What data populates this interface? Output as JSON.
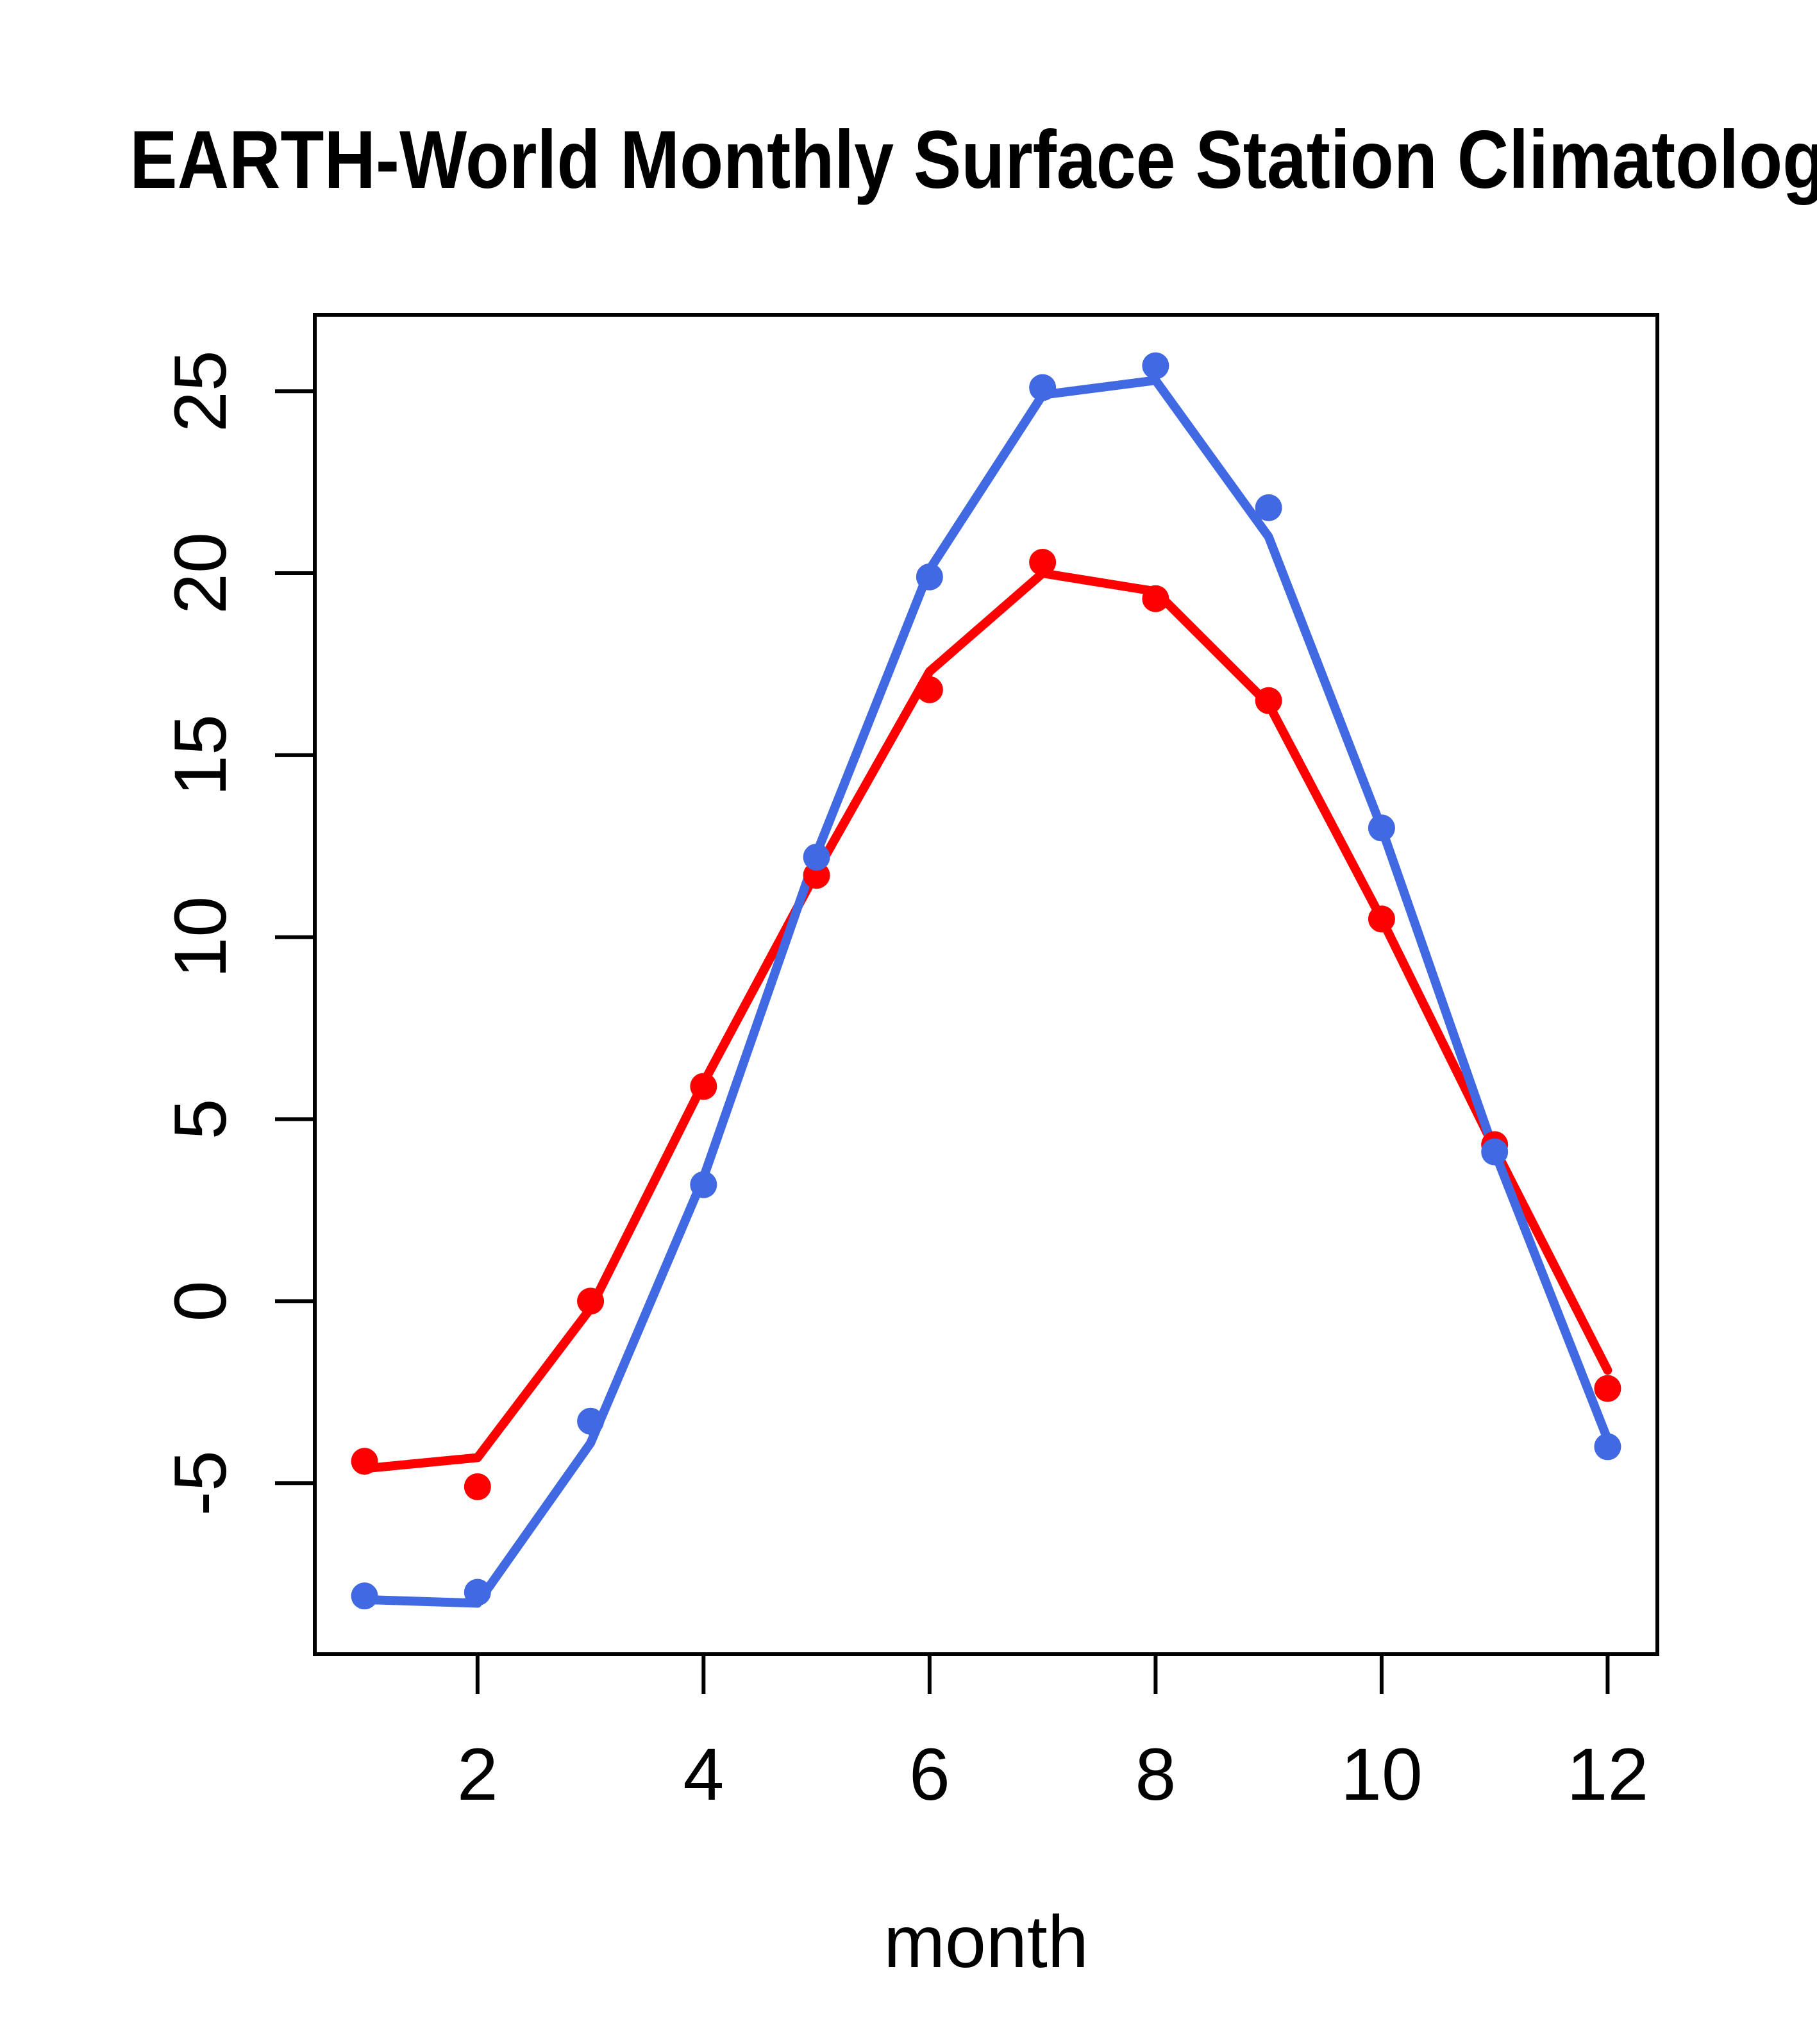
{
  "chart_data": {
    "type": "line",
    "title": "EARTH-World Monthly Surface Station Climatology",
    "xlabel": "month",
    "ylabel": "",
    "x": [
      1,
      2,
      3,
      4,
      5,
      6,
      7,
      8,
      9,
      10,
      11,
      12
    ],
    "x_ticks": [
      "2",
      "4",
      "6",
      "8",
      "10",
      "12"
    ],
    "x_tick_values": [
      2,
      4,
      6,
      8,
      10,
      12
    ],
    "y_ticks": [
      "-5",
      "0",
      "5",
      "10",
      "15",
      "20",
      "25"
    ],
    "y_tick_values": [
      -5,
      0,
      5,
      10,
      15,
      20,
      25
    ],
    "xlim": [
      0.56,
      12.44
    ],
    "ylim": [
      -9.7,
      27.1
    ],
    "grid": false,
    "legend_position": "none",
    "series": [
      {
        "name": "red-line",
        "style": "line",
        "color": "#FF0000",
        "values": [
          -4.6,
          -4.3,
          -0.2,
          6.0,
          11.8,
          17.3,
          20.0,
          19.5,
          16.4,
          10.5,
          4.2,
          -1.9
        ]
      },
      {
        "name": "blue-line",
        "style": "line",
        "color": "#4169E1",
        "values": [
          -8.2,
          -8.3,
          -3.9,
          3.4,
          12.3,
          20.1,
          24.9,
          25.3,
          21.0,
          13.0,
          4.1,
          -3.8
        ]
      },
      {
        "name": "red-points",
        "style": "points",
        "color": "#FF0000",
        "values": [
          -4.4,
          -5.1,
          0.0,
          5.9,
          11.7,
          16.8,
          20.3,
          19.3,
          16.5,
          10.5,
          4.3,
          -2.4
        ]
      },
      {
        "name": "blue-points",
        "style": "points",
        "color": "#4169E1",
        "values": [
          -8.1,
          -8.0,
          -3.3,
          3.2,
          12.2,
          19.9,
          25.1,
          25.7,
          21.8,
          13.0,
          4.1,
          -4.0
        ]
      }
    ],
    "colors": {
      "red": "#FF0000",
      "blue": "#4169E1",
      "axis": "#000000",
      "background": "#FFFFFF"
    }
  }
}
